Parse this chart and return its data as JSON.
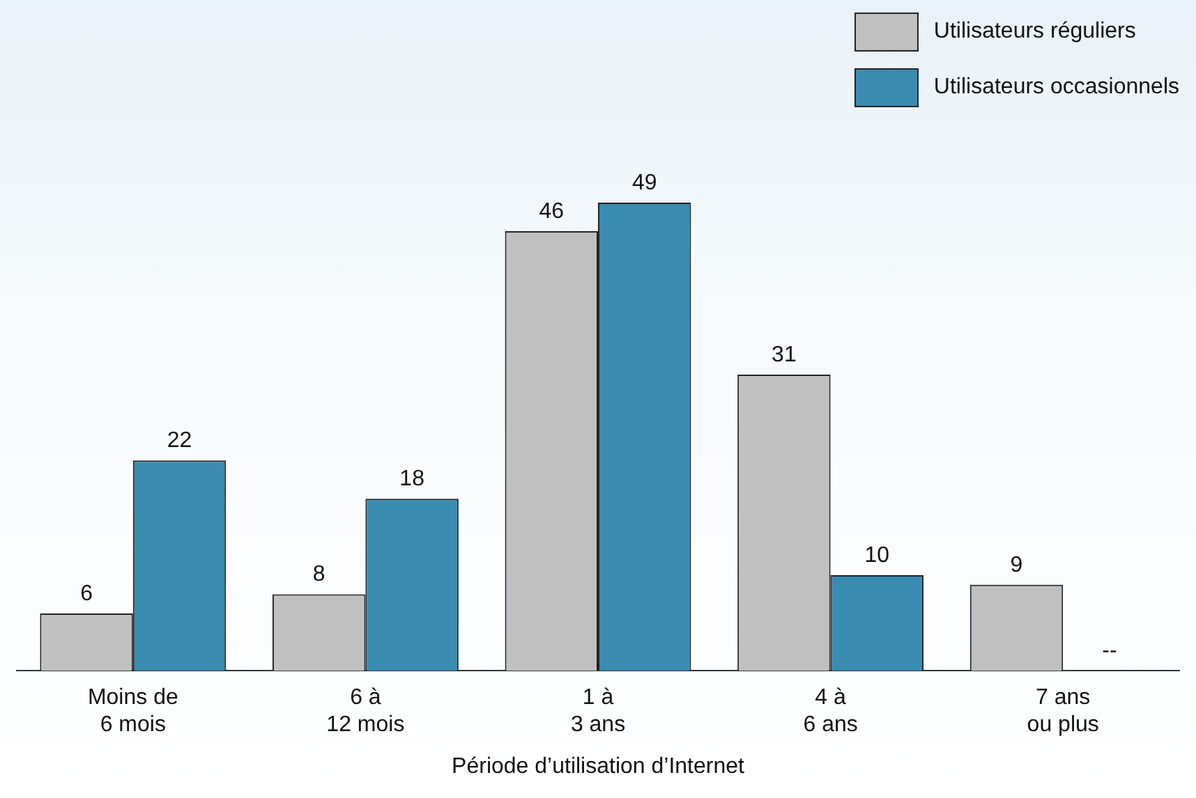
{
  "chart_data": {
    "type": "bar",
    "xlabel": "Période d’utilisation d’Internet",
    "categories": [
      "Moins de\n6 mois",
      "6 à\n12 mois",
      "1 à\n3 ans",
      "4 à\n6 ans",
      "7 ans\nou plus"
    ],
    "series": [
      {
        "name": "Utilisateurs réguliers",
        "color": "#c0c0c0",
        "values": [
          6,
          8,
          46,
          31,
          9
        ],
        "value_labels": [
          "6",
          "8",
          "46",
          "31",
          "9"
        ]
      },
      {
        "name": "Utilisateurs occasionnels",
        "color": "#3a8bb0",
        "values": [
          22,
          18,
          49,
          10,
          null
        ],
        "value_labels": [
          "22",
          "18",
          "49",
          "10",
          "--"
        ]
      }
    ],
    "legend": "top right",
    "grid": false
  }
}
